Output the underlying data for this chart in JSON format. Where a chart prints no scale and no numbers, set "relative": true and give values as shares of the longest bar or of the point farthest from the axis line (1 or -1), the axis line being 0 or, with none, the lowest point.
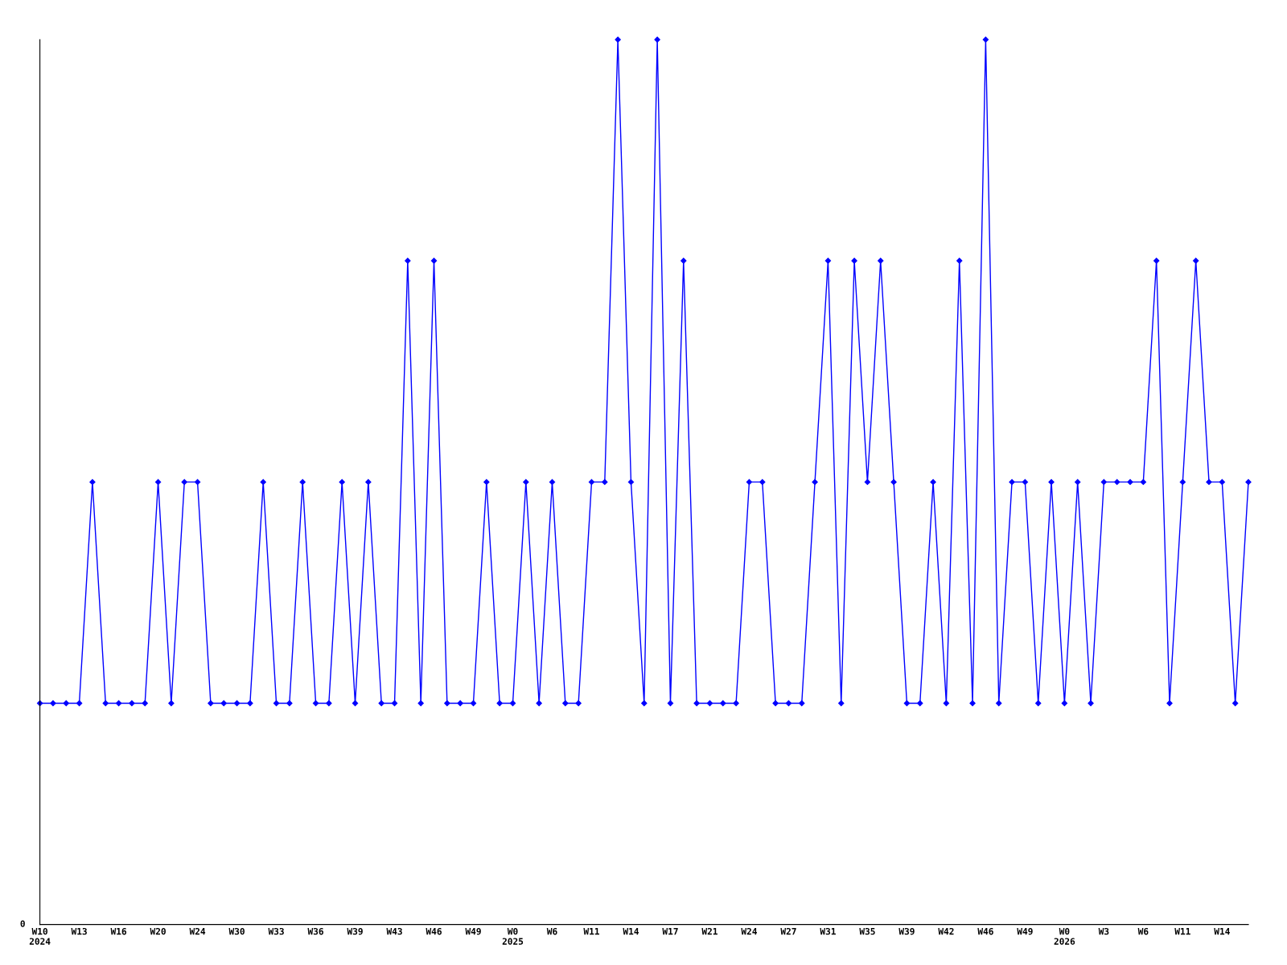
{
  "chart_data": {
    "type": "line",
    "relative": true,
    "marker": "diamond",
    "line_style": "solid",
    "categories": [
      "W10\n2024",
      null,
      null,
      "W13",
      null,
      null,
      "W16",
      null,
      null,
      "W20",
      null,
      null,
      "W24",
      null,
      null,
      "W30",
      null,
      null,
      "W33",
      null,
      null,
      "W36",
      null,
      null,
      "W39",
      null,
      null,
      "W43",
      null,
      null,
      "W46",
      null,
      null,
      "W49",
      null,
      null,
      "W0\n2025",
      null,
      null,
      "W6",
      null,
      null,
      "W11",
      null,
      null,
      "W14",
      null,
      null,
      "W17",
      null,
      null,
      "W21",
      null,
      null,
      "W24",
      null,
      null,
      "W27",
      null,
      null,
      "W31",
      null,
      null,
      "W35",
      null,
      null,
      "W39",
      null,
      null,
      "W42",
      null,
      null,
      "W46",
      null,
      null,
      "W49",
      null,
      null,
      "W0\n2026",
      null,
      null,
      "W3",
      null,
      null,
      "W6",
      null,
      null,
      "W11",
      null,
      null,
      "W14",
      null,
      null
    ],
    "series": [
      {
        "color": "#0000ff",
        "values": [
          0.25,
          0.25,
          0.25,
          0.25,
          0.5,
          0.25,
          0.25,
          0.25,
          0.25,
          0.5,
          0.25,
          0.5,
          0.5,
          0.25,
          0.25,
          0.25,
          0.25,
          0.5,
          0.25,
          0.25,
          0.5,
          0.25,
          0.25,
          0.5,
          0.25,
          0.5,
          0.25,
          0.25,
          0.75,
          0.25,
          0.75,
          0.25,
          0.25,
          0.25,
          0.5,
          0.25,
          0.25,
          0.5,
          0.25,
          0.5,
          0.25,
          0.25,
          0.5,
          0.5,
          1,
          0.5,
          0.25,
          1,
          0.25,
          0.75,
          0.25,
          0.25,
          0.25,
          0.25,
          0.5,
          0.5,
          0.25,
          0.25,
          0.25,
          0.5,
          0.75,
          0.25,
          0.75,
          0.5,
          0.75,
          0.5,
          0.25,
          0.25,
          0.5,
          0.25,
          0.75,
          0.25,
          1,
          0.25,
          0.5,
          0.5,
          0.25,
          0.5,
          0.25,
          0.5,
          0.25,
          0.5,
          0.5,
          0.5,
          0.5,
          0.75,
          0.25,
          0.5,
          0.75,
          0.5,
          0.5,
          0.25,
          0.5
        ]
      }
    ],
    "annotations": [
      "0"
    ]
  }
}
